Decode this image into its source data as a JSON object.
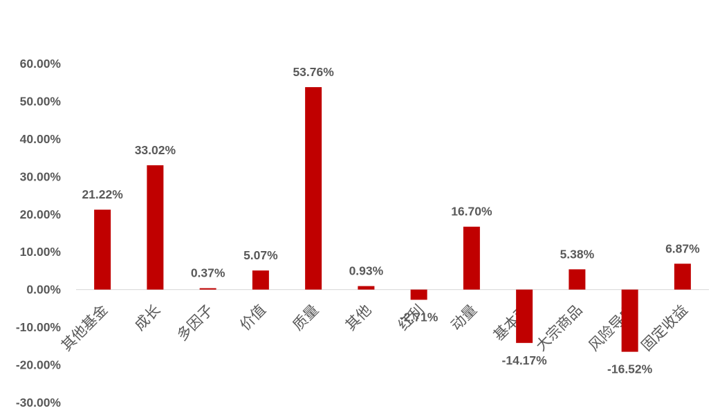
{
  "chart_data": {
    "type": "bar",
    "categories": [
      "其他基金",
      "成长",
      "多因子",
      "价值",
      "质量",
      "其他",
      "红利",
      "动量",
      "基本面",
      "大宗商品",
      "风险导向",
      "固定收益"
    ],
    "values": [
      21.22,
      33.02,
      0.37,
      5.07,
      53.76,
      0.93,
      -2.71,
      16.7,
      -14.17,
      5.38,
      -16.52,
      6.87
    ],
    "data_labels": [
      "21.22%",
      "33.02%",
      "0.37%",
      "5.07%",
      "53.76%",
      "0.93%",
      "-2.71%",
      "16.70%",
      "-14.17%",
      "5.38%",
      "-16.52%",
      "6.87%"
    ],
    "ylim": [
      -30,
      60
    ],
    "yticks": [
      60,
      50,
      40,
      30,
      20,
      10,
      0,
      -10,
      -20,
      -30
    ],
    "ytick_labels": [
      "60.00%",
      "50.00%",
      "40.00%",
      "30.00%",
      "20.00%",
      "10.00%",
      "0.00%",
      "-10.00%",
      "-20.00%",
      "-30.00%"
    ],
    "grid": false,
    "legend": "none",
    "colors": {
      "bar": "#C00000",
      "text": "#595959",
      "axis": "#D9D9D9"
    }
  }
}
